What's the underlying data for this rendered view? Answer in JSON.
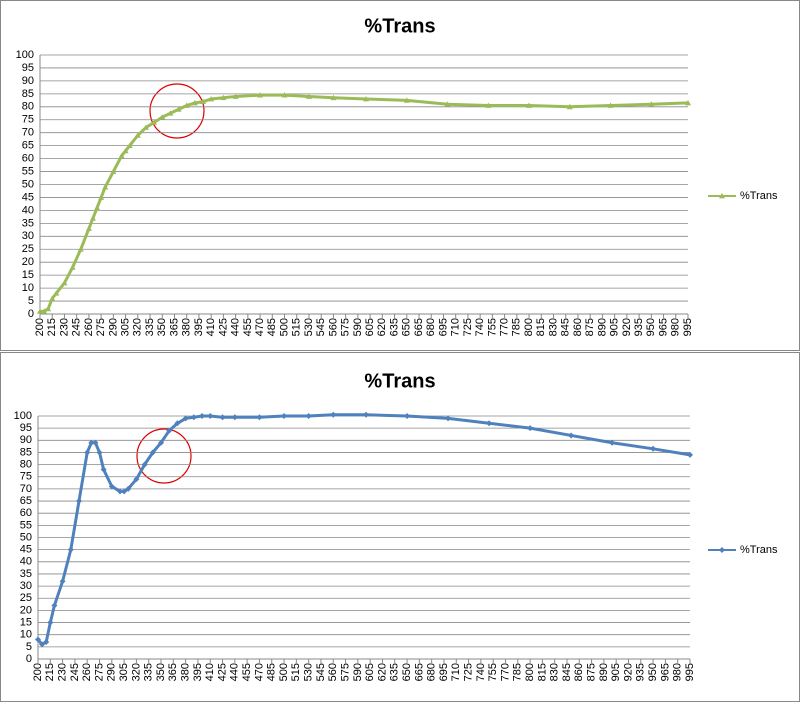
{
  "chart_data": [
    {
      "type": "line",
      "title": "%Trans",
      "marker": "triangle",
      "x": [
        200,
        205,
        210,
        215,
        220,
        230,
        240,
        250,
        260,
        265,
        270,
        275,
        280,
        290,
        300,
        305,
        310,
        320,
        330,
        340,
        350,
        360,
        370,
        380,
        390,
        400,
        410,
        425,
        440,
        470,
        500,
        530,
        560,
        600,
        650,
        700,
        750,
        800,
        850,
        900,
        950,
        995
      ],
      "series": [
        {
          "name": "%Trans",
          "color": "#9bbb59",
          "values": [
            1,
            1,
            2,
            6,
            8,
            12,
            18,
            25,
            33,
            37,
            41,
            45,
            49,
            55,
            61,
            63,
            65,
            69,
            72,
            74,
            76,
            77.5,
            79,
            80.5,
            81.5,
            82,
            83,
            83.5,
            84,
            84.5,
            84.5,
            84,
            83.5,
            83,
            82.5,
            81,
            80.5,
            80.5,
            80,
            80.5,
            81,
            81.5
          ]
        }
      ],
      "xlim": [
        200,
        995
      ],
      "xticks": [
        200,
        215,
        230,
        245,
        260,
        275,
        290,
        305,
        320,
        335,
        350,
        365,
        380,
        395,
        410,
        425,
        440,
        455,
        470,
        485,
        500,
        515,
        530,
        545,
        560,
        575,
        590,
        605,
        620,
        635,
        650,
        665,
        680,
        695,
        710,
        725,
        740,
        755,
        770,
        785,
        800,
        815,
        830,
        845,
        860,
        875,
        890,
        905,
        920,
        935,
        950,
        965,
        980,
        995
      ],
      "ylim": [
        0,
        100
      ],
      "yticks": [
        0,
        5,
        10,
        15,
        20,
        25,
        30,
        35,
        40,
        45,
        50,
        55,
        60,
        65,
        70,
        75,
        80,
        85,
        90,
        95,
        100
      ],
      "grid": true,
      "legend": "right"
    },
    {
      "type": "line",
      "title": "%Trans",
      "marker": "diamond",
      "x": [
        200,
        205,
        210,
        215,
        220,
        230,
        240,
        250,
        260,
        265,
        270,
        275,
        280,
        290,
        300,
        305,
        310,
        320,
        330,
        340,
        350,
        360,
        370,
        380,
        390,
        400,
        410,
        425,
        440,
        470,
        500,
        530,
        560,
        600,
        650,
        700,
        750,
        800,
        850,
        900,
        950,
        995
      ],
      "series": [
        {
          "name": "%Trans",
          "color": "#4f81bd",
          "values": [
            8,
            6,
            7,
            15,
            22,
            32,
            45,
            65,
            85,
            89,
            89,
            85,
            78,
            71,
            69,
            69,
            70,
            74,
            80,
            85,
            89,
            94,
            97,
            99,
            99.5,
            100,
            100,
            99.5,
            99.5,
            99.5,
            100,
            100,
            100.5,
            100.5,
            100,
            99,
            97,
            95,
            92,
            89,
            86.5,
            84
          ]
        }
      ],
      "xlim": [
        200,
        995
      ],
      "xticks": [
        200,
        215,
        230,
        245,
        260,
        275,
        290,
        305,
        320,
        335,
        350,
        365,
        380,
        395,
        410,
        425,
        440,
        455,
        470,
        485,
        500,
        515,
        530,
        545,
        560,
        575,
        590,
        605,
        620,
        635,
        650,
        665,
        680,
        695,
        710,
        725,
        740,
        755,
        770,
        785,
        800,
        815,
        830,
        845,
        860,
        875,
        890,
        905,
        920,
        935,
        950,
        965,
        980,
        995
      ],
      "ylim": [
        0,
        100
      ],
      "yticks": [
        0,
        5,
        10,
        15,
        20,
        25,
        30,
        35,
        40,
        45,
        50,
        55,
        60,
        65,
        70,
        75,
        80,
        85,
        90,
        95,
        100
      ],
      "grid": true,
      "legend": "right"
    }
  ]
}
